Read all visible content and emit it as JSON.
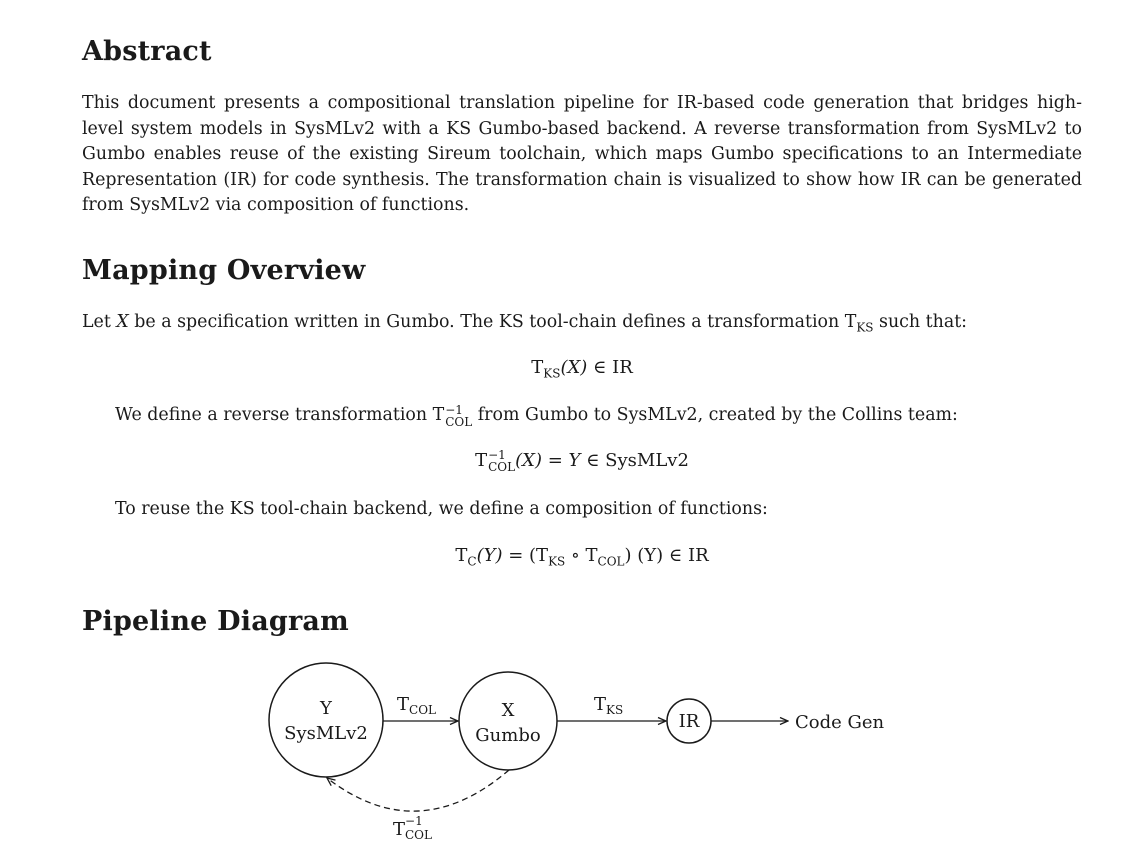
{
  "sections": {
    "abstract": {
      "heading": "Abstract",
      "text": "This document presents a compositional translation pipeline for IR-based code generation that bridges high-level system models in SysMLv2 with a KS Gumbo-based backend.  A reverse transformation from SysMLv2 to Gumbo enables reuse of the existing Sireum toolchain, which maps Gumbo specifications to an Intermediate Representation (IR) for code synthesis. The transformation chain is visualized to show how IR can be generated from SysMLv2 via composition of functions."
    },
    "mapping": {
      "heading": "Mapping Overview",
      "line1_pre": "Let ",
      "line1_var": "X",
      "line1_mid": " be a specification written in Gumbo. The KS tool-chain defines a transformation T",
      "line1_sub": "KS",
      "line1_post": " such that:",
      "eq1": {
        "t": "T",
        "sub": "KS",
        "arg": "(X)",
        "rest": " ∈ IR"
      },
      "line2_pre": "We define a reverse transformation T",
      "line2_sup": "−1",
      "line2_sub": "COL",
      "line2_post": " from Gumbo to SysMLv2, created by the Collins team:",
      "eq2": {
        "t": "T",
        "sup": "−1",
        "sub": "COL",
        "arg": "(X)",
        "mid": " = Y",
        "rest": " ∈ SysMLv2"
      },
      "line3": "To reuse the KS tool-chain backend, we define a composition of functions:",
      "eq3": {
        "t": "T",
        "sub": "C",
        "arg": "(Y)",
        "eq": " = (T",
        "sub2": "KS",
        "comp": " ∘ T",
        "sub3": "COL",
        "close": ") (Y)",
        "rest": " ∈ IR"
      }
    },
    "pipeline": {
      "heading": "Pipeline Diagram"
    }
  },
  "diagram": {
    "nodes": {
      "y": {
        "line1": "Y",
        "line2": "SysMLv2"
      },
      "x": {
        "line1": "X",
        "line2": "Gumbo"
      },
      "ir": {
        "label": "IR"
      },
      "out": {
        "label": "Code Gen"
      }
    },
    "edges": {
      "t_col": {
        "t": "T",
        "sub": "COL"
      },
      "t_ks": {
        "t": "T",
        "sub": "KS"
      },
      "t_col_inv": {
        "t": "T",
        "sup": "−1",
        "sub": "COL"
      }
    }
  }
}
